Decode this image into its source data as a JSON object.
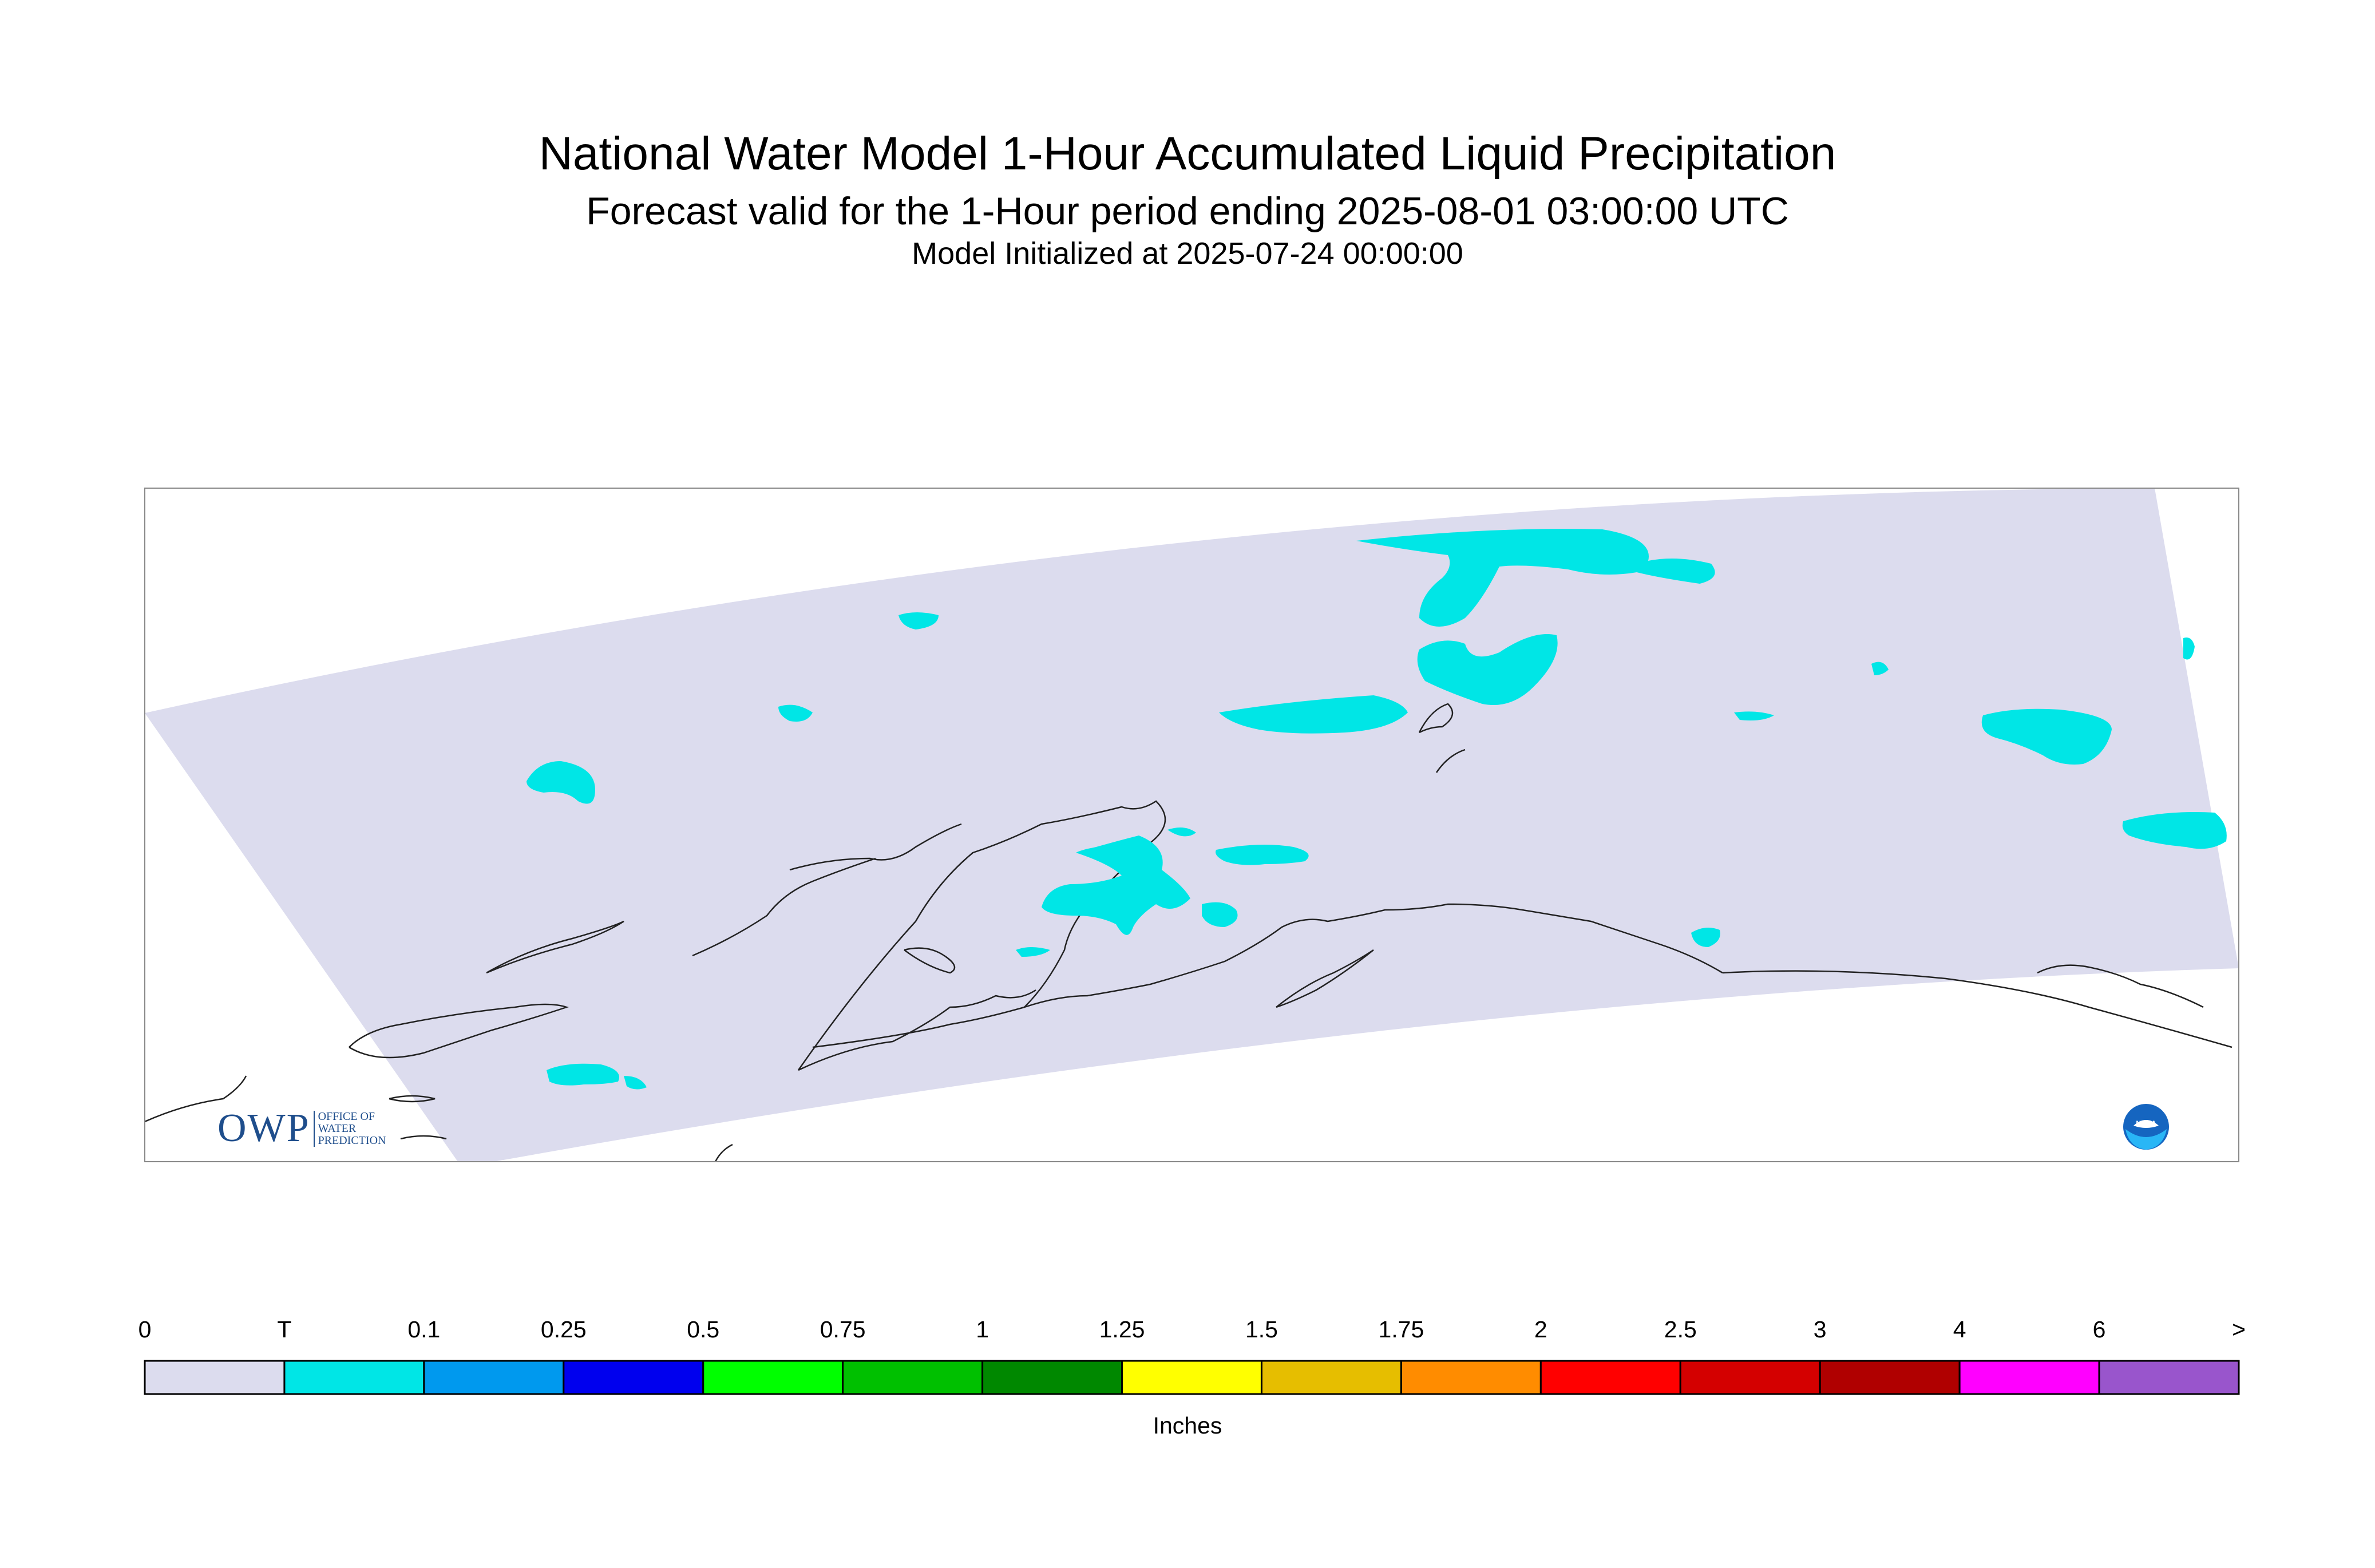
{
  "title": {
    "main": "National Water Model 1-Hour Accumulated Liquid Precipitation",
    "forecast": "Forecast valid for the 1-Hour period ending 2025-08-01 03:00:00 UTC",
    "init": "Model Initialized at 2025-07-24 00:00:00"
  },
  "map": {
    "domain_fill": "#dcdcee",
    "precip_color": "#00e6e6",
    "coastline_color": "#222222"
  },
  "legend": {
    "units": "Inches",
    "ticks": [
      "0",
      "T",
      "0.1",
      "0.25",
      "0.5",
      "0.75",
      "1",
      "1.25",
      "1.5",
      "1.75",
      "2",
      "2.5",
      "3",
      "4",
      "6",
      ">"
    ],
    "colors": [
      "#dcdcee",
      "#00e6e6",
      "#0099ee",
      "#0000ee",
      "#00ff00",
      "#00c000",
      "#008800",
      "#ffff00",
      "#e6be00",
      "#ff8c00",
      "#ff0000",
      "#d40000",
      "#b00000",
      "#ff00ff",
      "#9955cc"
    ]
  },
  "logos": {
    "owp_mark": "OWP",
    "owp_words": [
      "OFFICE OF",
      "WATER",
      "PREDICTION"
    ],
    "noaa_text": "NOAA"
  }
}
